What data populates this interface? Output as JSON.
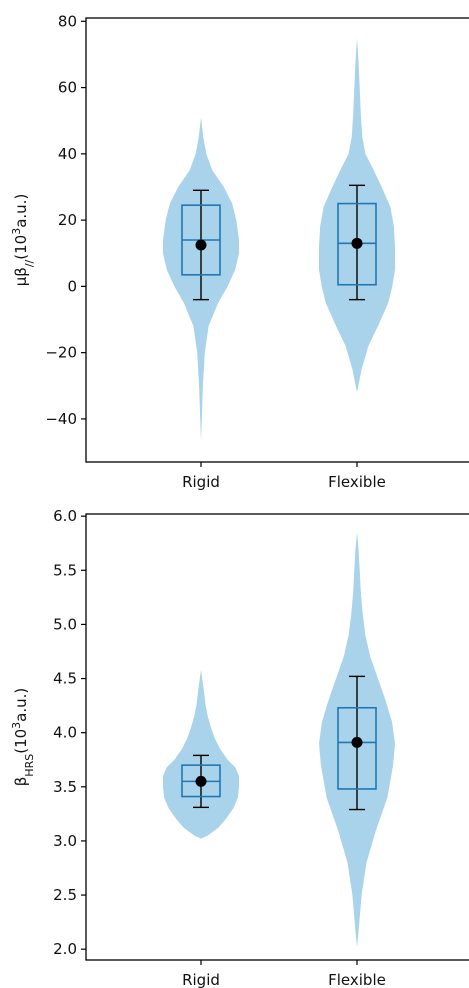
{
  "colors": {
    "violin_fill": "#a9d3ea",
    "box_stroke": "#1f77b4",
    "whisker_stroke": "#000000",
    "mean_marker": "#000000",
    "axes": "#000000"
  },
  "chart_data": [
    {
      "type": "violin",
      "ylabel_html": "μβ<tspan baseline-shift='sub' font-size='11'>//</tspan>(10<tspan baseline-shift='super' font-size='11'>3</tspan>a.u.)",
      "ylabel": "μβ//(10³a.u.)",
      "ylim": [
        -53,
        81
      ],
      "yticks": [
        -40,
        -20,
        0,
        20,
        40,
        60,
        80
      ],
      "ytick_labels": [
        "−40",
        "−20",
        "0",
        "20",
        "40",
        "60",
        "80"
      ],
      "categories": [
        "Rigid",
        "Flexible"
      ],
      "series": [
        {
          "category": "Rigid",
          "violin_profile": [
            [
              -47,
              0.0
            ],
            [
              -40,
              0.02
            ],
            [
              -30,
              0.05
            ],
            [
              -20,
              0.1
            ],
            [
              -12,
              0.2
            ],
            [
              -5,
              0.45
            ],
            [
              0,
              0.7
            ],
            [
              5,
              0.9
            ],
            [
              10,
              1.0
            ],
            [
              14,
              1.0
            ],
            [
              20,
              0.93
            ],
            [
              25,
              0.82
            ],
            [
              30,
              0.6
            ],
            [
              35,
              0.3
            ],
            [
              40,
              0.14
            ],
            [
              45,
              0.06
            ],
            [
              51,
              0.0
            ]
          ],
          "q1": 3.5,
          "median": 14,
          "q3": 24.5,
          "whisker_low": -4,
          "whisker_high": 29,
          "mean": 12.5
        },
        {
          "category": "Flexible",
          "violin_profile": [
            [
              -32,
              0.0
            ],
            [
              -25,
              0.12
            ],
            [
              -18,
              0.3
            ],
            [
              -12,
              0.55
            ],
            [
              -5,
              0.82
            ],
            [
              0,
              0.93
            ],
            [
              5,
              1.0
            ],
            [
              12,
              1.0
            ],
            [
              18,
              0.97
            ],
            [
              24,
              0.88
            ],
            [
              30,
              0.65
            ],
            [
              36,
              0.4
            ],
            [
              40,
              0.22
            ],
            [
              45,
              0.14
            ],
            [
              52,
              0.1
            ],
            [
              60,
              0.07
            ],
            [
              68,
              0.04
            ],
            [
              75,
              0.0
            ]
          ],
          "q1": 0.5,
          "median": 13,
          "q3": 25,
          "whisker_low": -4,
          "whisker_high": 30.5,
          "mean": 13
        }
      ]
    },
    {
      "type": "violin",
      "ylabel_html": "β<tspan baseline-shift='sub' font-size='11'>HRS</tspan>(10<tspan baseline-shift='super' font-size='11'>3</tspan>a.u.)",
      "ylabel": "βHRS(10³a.u.)",
      "ylim": [
        1.9,
        6.02
      ],
      "yticks": [
        2.0,
        2.5,
        3.0,
        3.5,
        4.0,
        4.5,
        5.0,
        5.5,
        6.0
      ],
      "ytick_labels": [
        "2.0",
        "2.5",
        "3.0",
        "3.5",
        "4.0",
        "4.5",
        "5.0",
        "5.5",
        "6.0"
      ],
      "categories": [
        "Rigid",
        "Flexible"
      ],
      "series": [
        {
          "category": "Rigid",
          "violin_profile": [
            [
              3.02,
              0.0
            ],
            [
              3.05,
              0.18
            ],
            [
              3.12,
              0.45
            ],
            [
              3.2,
              0.65
            ],
            [
              3.3,
              0.85
            ],
            [
              3.4,
              0.97
            ],
            [
              3.5,
              1.0
            ],
            [
              3.6,
              1.0
            ],
            [
              3.68,
              0.9
            ],
            [
              3.75,
              0.7
            ],
            [
              3.85,
              0.5
            ],
            [
              3.95,
              0.36
            ],
            [
              4.05,
              0.26
            ],
            [
              4.15,
              0.18
            ],
            [
              4.25,
              0.12
            ],
            [
              4.4,
              0.07
            ],
            [
              4.58,
              0.0
            ]
          ],
          "q1": 3.41,
          "median": 3.55,
          "q3": 3.7,
          "whisker_low": 3.31,
          "whisker_high": 3.79,
          "mean": 3.55
        },
        {
          "category": "Flexible",
          "violin_profile": [
            [
              2.02,
              0.0
            ],
            [
              2.2,
              0.05
            ],
            [
              2.5,
              0.12
            ],
            [
              2.8,
              0.25
            ],
            [
              3.1,
              0.5
            ],
            [
              3.4,
              0.8
            ],
            [
              3.7,
              0.95
            ],
            [
              3.9,
              1.0
            ],
            [
              4.1,
              0.92
            ],
            [
              4.3,
              0.75
            ],
            [
              4.5,
              0.55
            ],
            [
              4.7,
              0.35
            ],
            [
              4.9,
              0.22
            ],
            [
              5.1,
              0.15
            ],
            [
              5.3,
              0.1
            ],
            [
              5.5,
              0.07
            ],
            [
              5.7,
              0.04
            ],
            [
              5.85,
              0.0
            ]
          ],
          "q1": 3.48,
          "median": 3.91,
          "q3": 4.23,
          "whisker_low": 3.29,
          "whisker_high": 4.52,
          "mean": 3.91
        }
      ]
    }
  ]
}
